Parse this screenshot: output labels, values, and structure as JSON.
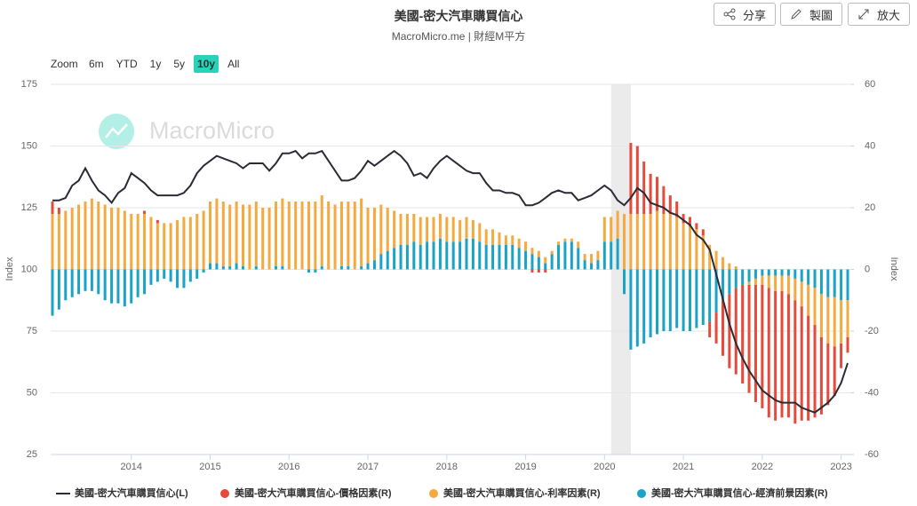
{
  "header": {
    "title": "美國-密大汽車購買信心",
    "subtitle": "MacroMicro.me | 財經M平方"
  },
  "toolbar": {
    "buttons": [
      "分享",
      "製圖",
      "放大"
    ]
  },
  "zoom": {
    "label": "Zoom",
    "options": [
      "6m",
      "YTD",
      "1y",
      "5y",
      "10y",
      "All"
    ],
    "active": 4
  },
  "watermark": "MacroMicro",
  "chart_data": {
    "type": "bar-line",
    "ylabel": "Index",
    "y2label": "Index",
    "ylim": [
      25,
      175
    ],
    "yticks": [
      25,
      50,
      75,
      100,
      125,
      150,
      175
    ],
    "y2lim": [
      -60,
      60
    ],
    "y2ticks": [
      -60,
      -40,
      -20,
      0,
      20,
      40,
      60
    ],
    "xlim": [
      "2013-01",
      "2023-02"
    ],
    "xticks": [
      {
        "value": "2014-01",
        "label": "2014"
      },
      {
        "value": "2015-01",
        "label": "2015"
      },
      {
        "value": "2016-01",
        "label": "2016"
      },
      {
        "value": "2017-01",
        "label": "2017"
      },
      {
        "value": "2018-01",
        "label": "2018"
      },
      {
        "value": "2019-01",
        "label": "2019"
      },
      {
        "value": "2020-01",
        "label": "2020"
      },
      {
        "value": "2021-01",
        "label": "2021"
      },
      {
        "value": "2022-01",
        "label": "2022"
      },
      {
        "value": "2023-01",
        "label": "2023"
      }
    ],
    "shade": [
      "2020-02",
      "2020-05"
    ],
    "grid": true,
    "stacked": true,
    "legend": "bottom",
    "x": [
      "2013-01",
      "2013-02",
      "2013-03",
      "2013-04",
      "2013-05",
      "2013-06",
      "2013-07",
      "2013-08",
      "2013-09",
      "2013-10",
      "2013-11",
      "2013-12",
      "2014-01",
      "2014-02",
      "2014-03",
      "2014-04",
      "2014-05",
      "2014-06",
      "2014-07",
      "2014-08",
      "2014-09",
      "2014-10",
      "2014-11",
      "2014-12",
      "2015-01",
      "2015-02",
      "2015-03",
      "2015-04",
      "2015-05",
      "2015-06",
      "2015-07",
      "2015-08",
      "2015-09",
      "2015-10",
      "2015-11",
      "2015-12",
      "2016-01",
      "2016-02",
      "2016-03",
      "2016-04",
      "2016-05",
      "2016-06",
      "2016-07",
      "2016-08",
      "2016-09",
      "2016-10",
      "2016-11",
      "2016-12",
      "2017-01",
      "2017-02",
      "2017-03",
      "2017-04",
      "2017-05",
      "2017-06",
      "2017-07",
      "2017-08",
      "2017-09",
      "2017-10",
      "2017-11",
      "2017-12",
      "2018-01",
      "2018-02",
      "2018-03",
      "2018-04",
      "2018-05",
      "2018-06",
      "2018-07",
      "2018-08",
      "2018-09",
      "2018-10",
      "2018-11",
      "2018-12",
      "2019-01",
      "2019-02",
      "2019-03",
      "2019-04",
      "2019-05",
      "2019-06",
      "2019-07",
      "2019-08",
      "2019-09",
      "2019-10",
      "2019-11",
      "2019-12",
      "2020-01",
      "2020-02",
      "2020-03",
      "2020-04",
      "2020-05",
      "2020-06",
      "2020-07",
      "2020-08",
      "2020-09",
      "2020-10",
      "2020-11",
      "2020-12",
      "2021-01",
      "2021-02",
      "2021-03",
      "2021-04",
      "2021-05",
      "2021-06",
      "2021-07",
      "2021-08",
      "2021-09",
      "2021-10",
      "2021-11",
      "2021-12",
      "2022-01",
      "2022-02",
      "2022-03",
      "2022-04",
      "2022-05",
      "2022-06",
      "2022-07",
      "2022-08",
      "2022-09",
      "2022-10",
      "2022-11",
      "2022-12",
      "2023-01",
      "2023-02"
    ],
    "series": [
      {
        "name": "美國-密大汽車購買信心(L)",
        "type": "line",
        "axis": "y",
        "color": "#2b2b36",
        "values": [
          128,
          128,
          129,
          134,
          136,
          141,
          136,
          132,
          130,
          127,
          131,
          133,
          139,
          137,
          135,
          132,
          130,
          130,
          130,
          130,
          131,
          134,
          139,
          142,
          144,
          146,
          145,
          144,
          143,
          141,
          143,
          143,
          143,
          140,
          143,
          147,
          147,
          148,
          145,
          147,
          147,
          148,
          144,
          140,
          136,
          136,
          137,
          140,
          144,
          142,
          144,
          146,
          148,
          146,
          143,
          138,
          139,
          137,
          141,
          144,
          146,
          144,
          142,
          140,
          139,
          139,
          135,
          132,
          132,
          131,
          131,
          130,
          126,
          126,
          127,
          129,
          131,
          132,
          131,
          131,
          128,
          129,
          130,
          132,
          134,
          132,
          128,
          126,
          129,
          133,
          131,
          127,
          126,
          125,
          123,
          122,
          120,
          118,
          114,
          112,
          108,
          98,
          88,
          78,
          70,
          64,
          59,
          55,
          51,
          49,
          47,
          46,
          46,
          46,
          44,
          43,
          42,
          44,
          46,
          49,
          54,
          62
        ]
      },
      {
        "name": "美國-密大汽車購買信心-價格因素(R)",
        "type": "bar",
        "axis": "y2",
        "color": "#e64a3b",
        "values": [
          4,
          2,
          0,
          0,
          0,
          0,
          0,
          0,
          0,
          0,
          0,
          0,
          0,
          0,
          1,
          0,
          1,
          0,
          0,
          0,
          0,
          0,
          0,
          0,
          0,
          0,
          0,
          0,
          0,
          0,
          0,
          0,
          0,
          0,
          0,
          0,
          0,
          0,
          0,
          0,
          0,
          0,
          0,
          0,
          0,
          0,
          0,
          0,
          0,
          0,
          0,
          0,
          0,
          0,
          0,
          0,
          0,
          0,
          0,
          0,
          0,
          0,
          0,
          0,
          0,
          0,
          0,
          0,
          0,
          0,
          0,
          0,
          0,
          -1,
          -1,
          -1,
          0,
          0,
          0,
          0,
          0,
          0,
          0,
          0,
          0,
          0,
          0,
          0,
          23,
          22,
          17,
          13,
          11,
          9,
          6,
          5,
          3,
          3,
          2,
          2,
          -5,
          -10,
          -18,
          -24,
          -28,
          -32,
          -35,
          -38,
          -40,
          -42,
          -42,
          -41,
          -40,
          -40,
          -37,
          -34,
          -30,
          -25,
          -20,
          -16,
          -8,
          -5
        ]
      },
      {
        "name": "美國-密大汽車購買信心-利率因素(R)",
        "type": "bar",
        "axis": "y2",
        "color": "#f5a93f",
        "values": [
          18,
          18,
          19,
          20,
          21,
          22,
          23,
          22,
          21,
          20,
          20,
          19,
          18,
          18,
          18,
          17,
          15,
          15,
          15,
          16,
          17,
          17,
          18,
          19,
          20,
          21,
          21,
          20,
          20,
          20,
          21,
          21,
          20,
          20,
          21,
          22,
          22,
          22,
          22,
          22,
          22,
          23,
          22,
          21,
          21,
          21,
          22,
          22,
          18,
          17,
          16,
          14,
          12,
          10,
          10,
          9,
          9,
          8,
          8,
          8,
          8,
          8,
          7,
          7,
          6,
          6,
          5,
          5,
          4,
          3,
          3,
          3,
          3,
          2,
          2,
          2,
          1,
          1,
          1,
          1,
          2,
          2,
          3,
          3,
          8,
          8,
          9,
          18,
          18,
          18,
          18,
          18,
          19,
          18,
          18,
          17,
          15,
          14,
          13,
          11,
          8,
          6,
          4,
          2,
          1,
          0,
          -1,
          -2,
          -3,
          -4,
          -5,
          -5,
          -6,
          -7,
          -8,
          -10,
          -12,
          -14,
          -15,
          -16,
          -14,
          -12
        ]
      },
      {
        "name": "美國-密大汽車購買信心-經濟前景因素(R)",
        "type": "bar",
        "axis": "y2",
        "color": "#1aa3c6",
        "values": [
          -15,
          -13,
          -10,
          -9,
          -8,
          -7,
          -7,
          -8,
          -10,
          -11,
          -11,
          -12,
          -11,
          -9,
          -8,
          -5,
          -4,
          -3,
          -4,
          -6,
          -6,
          -4,
          -3,
          -1,
          2,
          2,
          1,
          1,
          2,
          1,
          0,
          1,
          0,
          0,
          1,
          1,
          0,
          0,
          0,
          -1,
          -1,
          1,
          0,
          0,
          1,
          1,
          0,
          1,
          2,
          3,
          5,
          6,
          7,
          8,
          8,
          9,
          8,
          9,
          9,
          10,
          9,
          9,
          9,
          10,
          10,
          9,
          8,
          8,
          8,
          8,
          8,
          7,
          6,
          5,
          4,
          2,
          5,
          8,
          9,
          9,
          7,
          3,
          2,
          3,
          9,
          9,
          10,
          -8,
          -26,
          -25,
          -24,
          -22,
          -21,
          -20,
          -20,
          -19,
          -20,
          -20,
          -19,
          -18,
          -17,
          -14,
          -10,
          -8,
          -6,
          -5,
          -4,
          -3,
          -2,
          -2,
          -2,
          -2,
          -2,
          -3,
          -4,
          -5,
          -6,
          -8,
          -9,
          -9,
          -10,
          -10
        ]
      }
    ]
  }
}
